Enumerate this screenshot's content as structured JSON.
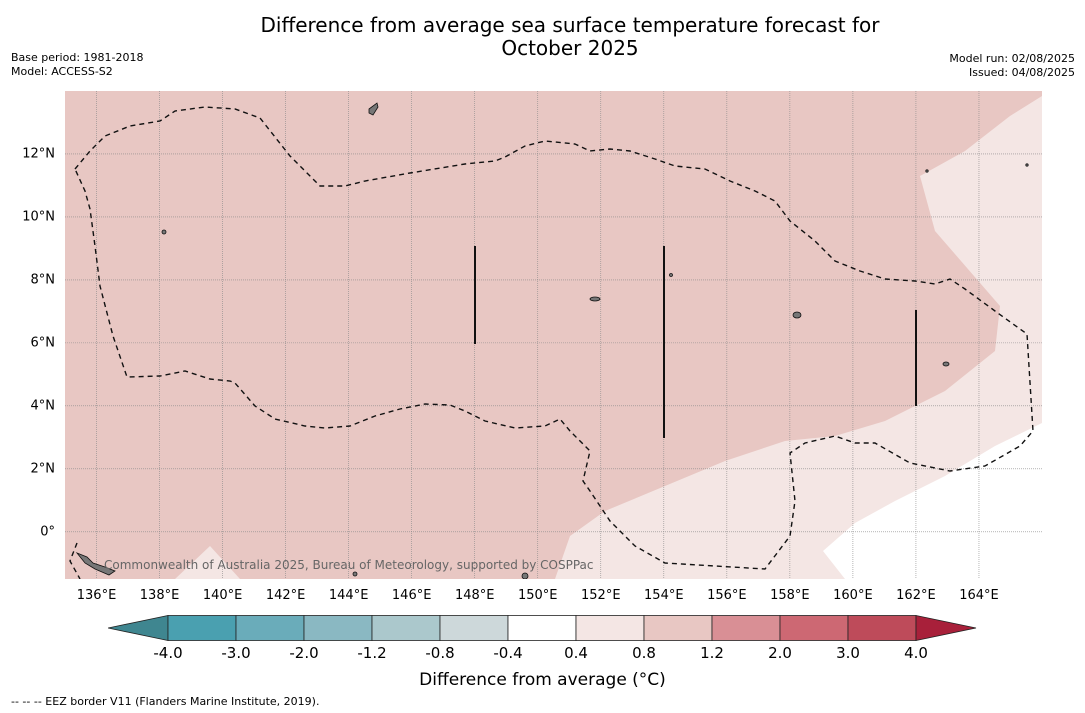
{
  "header": {
    "title_line1": "Difference from average sea surface temperature forecast for",
    "title_line2": "October 2025",
    "base_period": "Base period: 1981-2018",
    "model": "Model: ACCESS-S2",
    "model_run": "Model run: 02/08/2025",
    "issued": "Issued: 04/08/2025"
  },
  "map": {
    "x_ticks": [
      "136°E",
      "138°E",
      "140°E",
      "142°E",
      "144°E",
      "146°E",
      "148°E",
      "150°E",
      "152°E",
      "154°E",
      "156°E",
      "158°E",
      "160°E",
      "162°E",
      "164°E"
    ],
    "y_ticks": [
      "12°N",
      "10°N",
      "8°N",
      "6°N",
      "4°N",
      "2°N",
      "0°"
    ],
    "credit": "Commonwealth of Australia 2025, Bureau of Meteorology, supported by COSPPac",
    "lon_range": [
      135,
      166
    ],
    "lat_range": [
      -1.5,
      14
    ],
    "fill_main": "#e8c7c3",
    "fill_light": "#f4e6e4",
    "fill_none": "#ffffff"
  },
  "colorbar": {
    "labels": [
      "-4.0",
      "-3.0",
      "-2.0",
      "-1.2",
      "-0.8",
      "-0.4",
      "0.4",
      "0.8",
      "1.2",
      "2.0",
      "3.0",
      "4.0"
    ],
    "colors": [
      "#4aa0b0",
      "#6aacba",
      "#8ab8c2",
      "#abc8cc",
      "#cdd8da",
      "#ffffff",
      "#f4e6e4",
      "#e8c7c3",
      "#d98f95",
      "#cd6873",
      "#be4b5a"
    ],
    "under_color": "#3f8690",
    "over_color": "#a8203a",
    "title": "Difference from average (°C)"
  },
  "footer": {
    "legend": "--  --  -- EEZ border V11 (Flanders Marine Institute, 2019)."
  }
}
